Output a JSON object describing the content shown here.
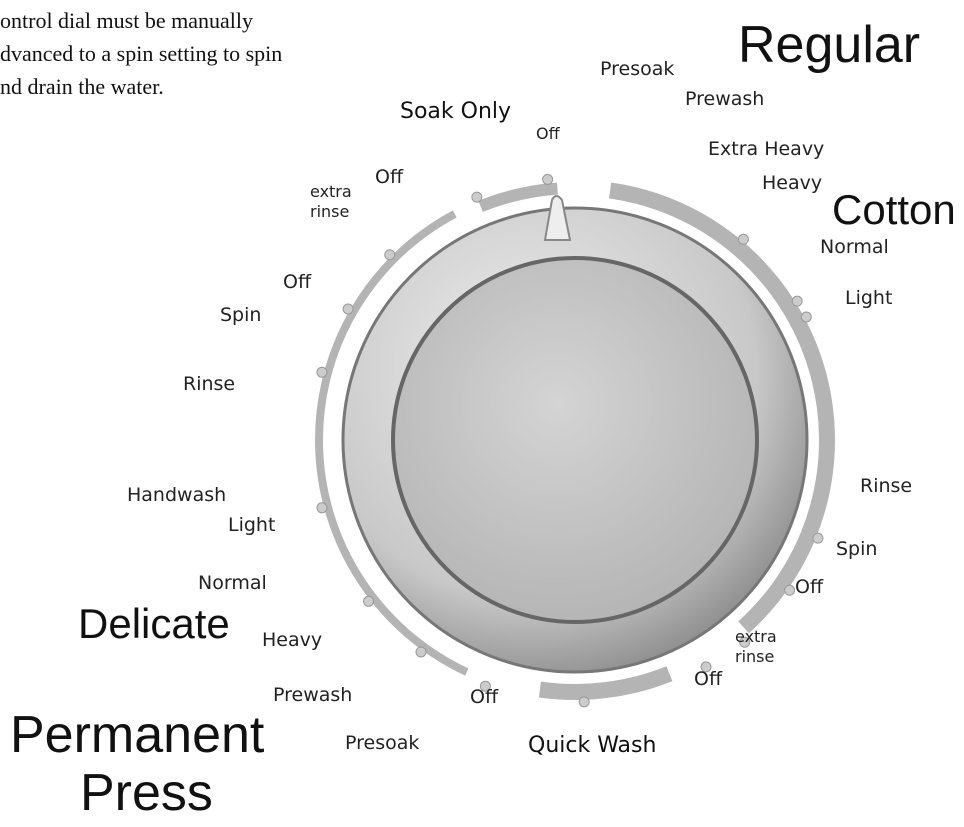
{
  "intro_text": [
    "ontrol dial must be manually",
    "dvanced to a spin setting to spin",
    "nd drain the water."
  ],
  "headings": {
    "regular": "Regular",
    "cotton": "Cotton",
    "delicate": "Delicate",
    "permanent_press": [
      "Permanent",
      "Press"
    ],
    "soak_only": "Soak Only",
    "quick_wash": "Quick Wash"
  },
  "right_labels": [
    "Presoak",
    "Prewash",
    "Extra Heavy",
    "Heavy",
    "Normal",
    "Light",
    "Rinse",
    "Spin",
    "Off",
    "extra",
    "rinse",
    "Off"
  ],
  "bottom_labels": [
    "Off",
    "Presoak",
    "Prewash",
    "Heavy"
  ],
  "left_labels": [
    "Normal",
    "Light",
    "Handwash",
    "Rinse",
    "Spin",
    "Off",
    "extra",
    "rinse",
    "Off",
    "Off"
  ]
}
